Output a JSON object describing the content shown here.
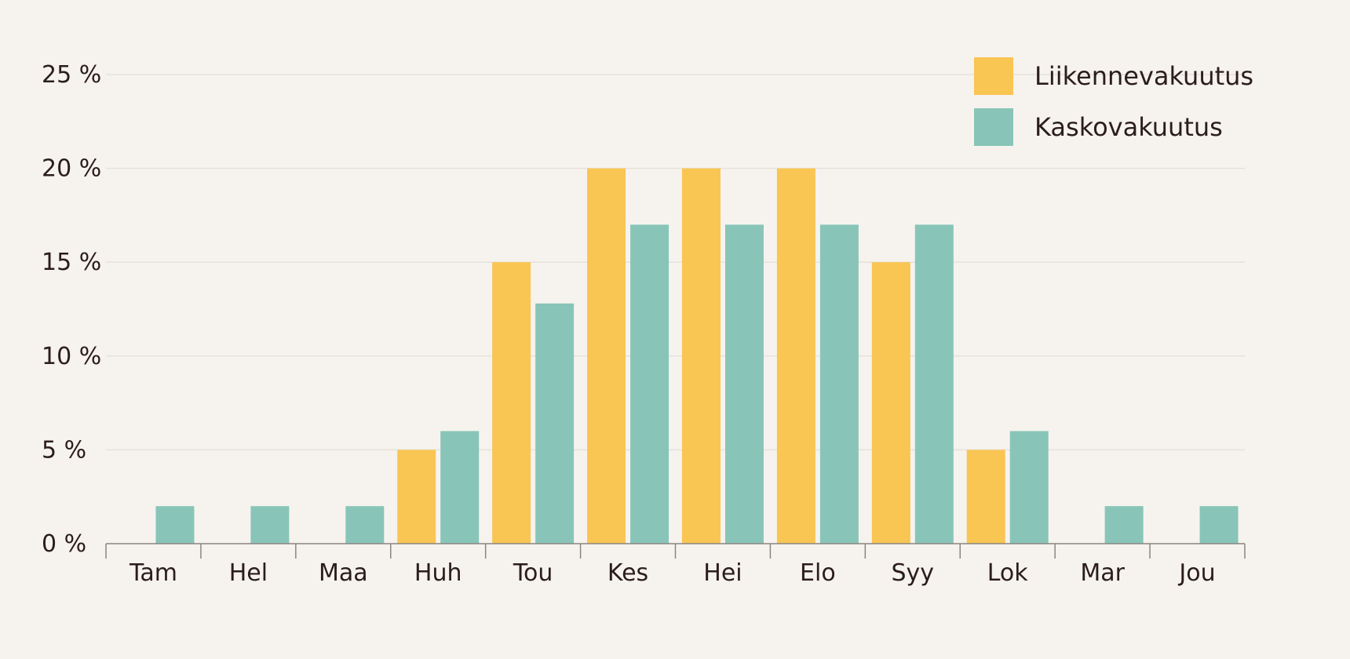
{
  "chart_data": {
    "type": "bar",
    "categories": [
      "Tam",
      "Hel",
      "Maa",
      "Huh",
      "Tou",
      "Kes",
      "Hei",
      "Elo",
      "Syy",
      "Lok",
      "Mar",
      "Jou"
    ],
    "series": [
      {
        "name": "Liikennevakuutus",
        "color": "#f9c553",
        "values": [
          0,
          0,
          0,
          5,
          15,
          20,
          20,
          20,
          15,
          5,
          0,
          0
        ]
      },
      {
        "name": "Kaskovakuutus",
        "color": "#88c5b8",
        "values": [
          2,
          2,
          2,
          6,
          12.8,
          17,
          17,
          17,
          17,
          6,
          2,
          2
        ]
      }
    ],
    "y_ticks": [
      "0 %",
      "5 %",
      "10 %",
      "15 %",
      "20 %",
      "25 %"
    ],
    "ylim": [
      0,
      25
    ],
    "grid": true,
    "legend_position": "top-right"
  }
}
